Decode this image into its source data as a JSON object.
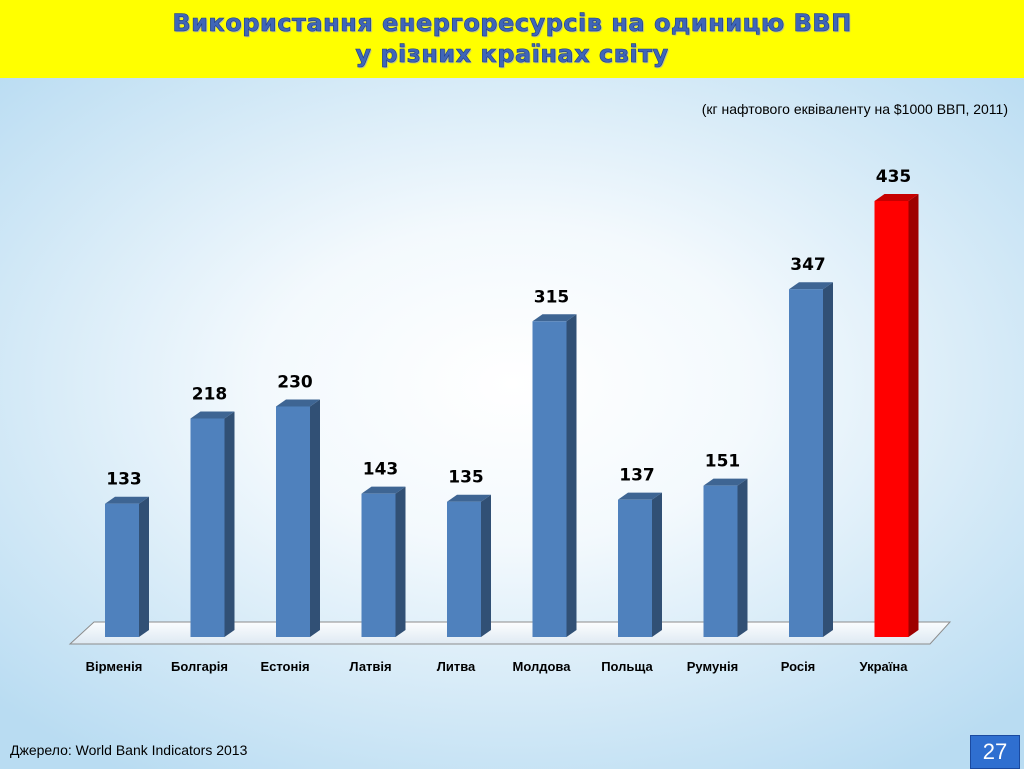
{
  "slide": {
    "title_line1": "Використання енергоресурсів на одиницю ВВП",
    "title_line2": "у різних країнах світу",
    "subtitle": "(кг нафтового еквіваленту на $1000 ВВП, 2011)",
    "source": "Джерело: World Bank Indicators 2013",
    "page_number": "27"
  },
  "chart_data": {
    "type": "bar",
    "title": "",
    "xlabel": "",
    "ylabel": "",
    "ylim": [
      0,
      435
    ],
    "grid": false,
    "categories": [
      "Вірменія",
      "Болгарія",
      "Естонія",
      "Латвія",
      "Литва",
      "Молдова",
      "Польща",
      "Румунія",
      "Росія",
      "Україна"
    ],
    "values": [
      133,
      218,
      230,
      143,
      135,
      315,
      137,
      151,
      347,
      435
    ],
    "colors": {
      "default": "#4f81bd",
      "highlight": "#ff0000"
    },
    "highlight_category": "Україна"
  }
}
